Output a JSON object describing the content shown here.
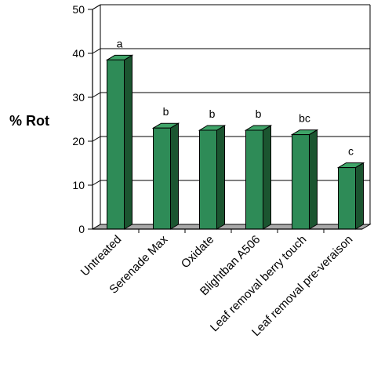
{
  "chart_data": {
    "type": "bar",
    "title": "",
    "xlabel": "",
    "ylabel": "% Rot",
    "ylim": [
      0,
      50
    ],
    "yticks": [
      0,
      10,
      20,
      30,
      40,
      50
    ],
    "grid": true,
    "categories": [
      "Untreated",
      "Serenade Max",
      "Oxidate",
      "Blightban A506",
      "Leaf removal berry touch",
      "Leaf removal pre-veraison"
    ],
    "values": [
      38.5,
      23,
      22.5,
      22.5,
      21.5,
      14
    ],
    "annotations": [
      "a",
      "b",
      "b",
      "b",
      "bc",
      "c"
    ],
    "colors": {
      "bar_front": "#2e8b57",
      "bar_side": "#1b5530",
      "bar_top": "#3fa468",
      "floor": "#a8a8a8"
    }
  }
}
